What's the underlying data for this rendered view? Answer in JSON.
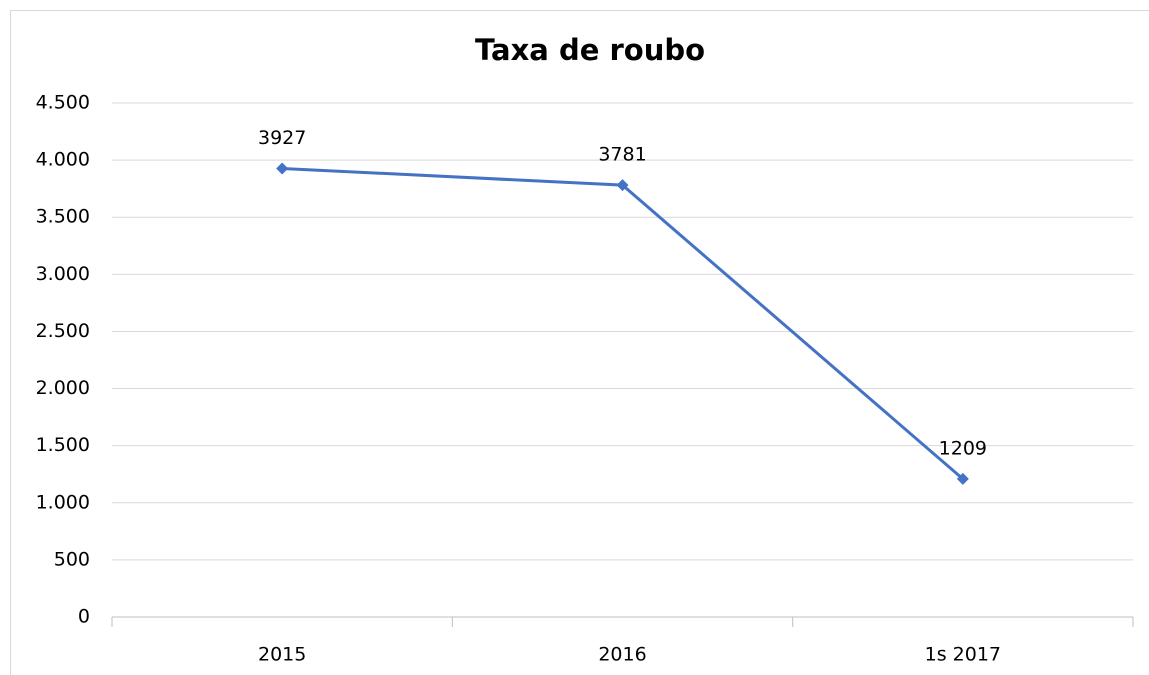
{
  "chart_data": {
    "type": "line",
    "title": "Taxa de roubo",
    "categories": [
      "2015",
      "2016",
      "1s 2017"
    ],
    "series": [
      {
        "name": "Taxa de roubo",
        "color": "#4472c4",
        "values": [
          3927,
          3781,
          1209
        ]
      }
    ],
    "ylim": [
      0,
      4500
    ],
    "yticks": [
      0,
      500,
      {
        "value": 1000,
        "label": "1.000"
      },
      {
        "value": 1500,
        "label": "1.500"
      },
      {
        "value": 2000,
        "label": "2.000"
      },
      {
        "value": 2500,
        "label": "2.500"
      },
      {
        "value": 3000,
        "label": "3.000"
      },
      {
        "value": 3500,
        "label": "3.500"
      },
      {
        "value": 4000,
        "label": "4.000"
      },
      {
        "value": 4500,
        "label": "4.500"
      }
    ],
    "grid": true
  }
}
